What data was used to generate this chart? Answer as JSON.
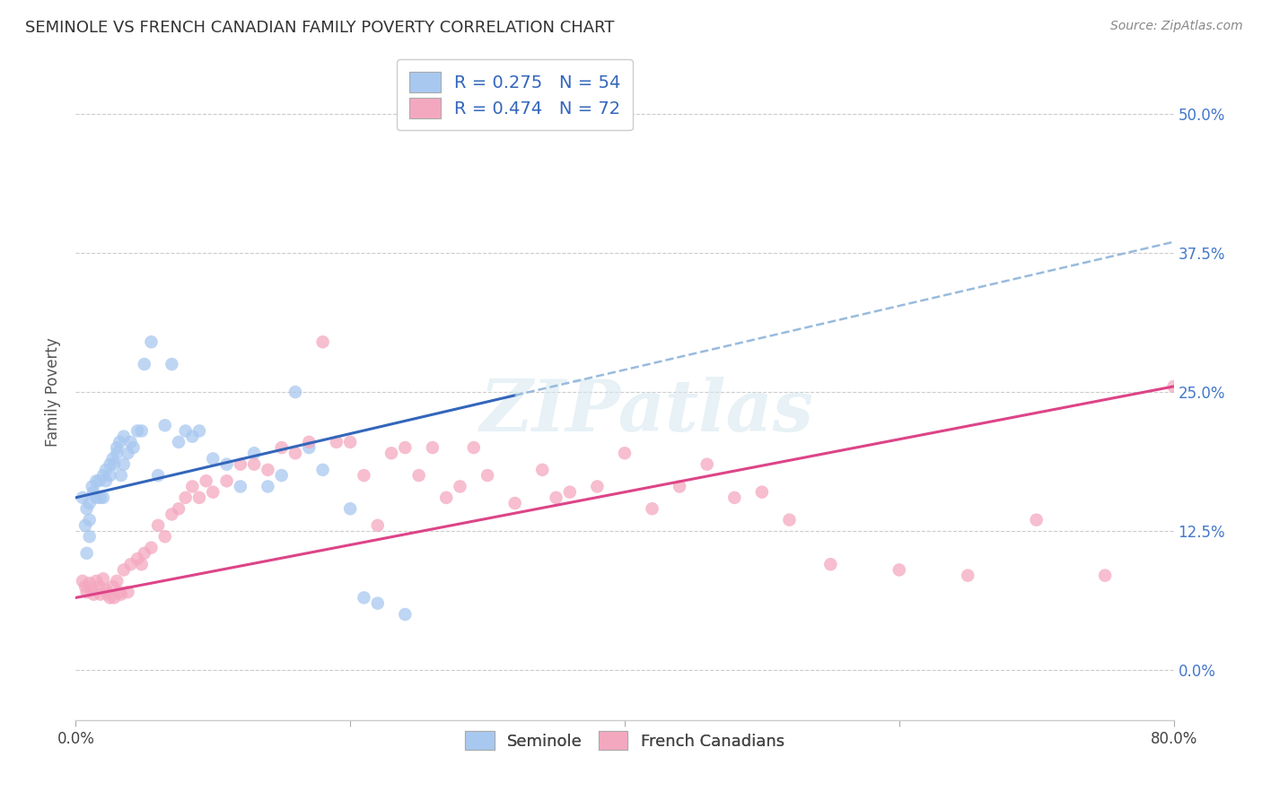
{
  "title": "SEMINOLE VS FRENCH CANADIAN FAMILY POVERTY CORRELATION CHART",
  "source": "Source: ZipAtlas.com",
  "ylabel": "Family Poverty",
  "ytick_values": [
    0.0,
    0.125,
    0.25,
    0.375,
    0.5
  ],
  "ytick_labels": [
    "0.0%",
    "12.5%",
    "25.0%",
    "37.5%",
    "50.0%"
  ],
  "xlim": [
    0.0,
    0.8
  ],
  "ylim": [
    -0.045,
    0.545
  ],
  "legend_label_seminole": "Seminole",
  "legend_label_french": "French Canadians",
  "seminole_color": "#a8c8f0",
  "french_color": "#f4a8c0",
  "blue_line_color": "#3366bb",
  "blue_dash_color": "#99bbdd",
  "pink_line_color": "#dd4488",
  "watermark": "ZIPatlas",
  "seminole_R": 0.275,
  "seminole_N": 54,
  "french_R": 0.474,
  "french_N": 72,
  "sem_line_x0": 0.0,
  "sem_line_y0": 0.155,
  "sem_line_x1": 0.8,
  "sem_line_y1": 0.385,
  "sem_line_solid_end": 0.32,
  "fre_line_x0": 0.0,
  "fre_line_y0": 0.065,
  "fre_line_x1": 0.8,
  "fre_line_y1": 0.255,
  "seminole_x": [
    0.005,
    0.007,
    0.008,
    0.01,
    0.01,
    0.012,
    0.013,
    0.015,
    0.015,
    0.017,
    0.018,
    0.02,
    0.02,
    0.022,
    0.022,
    0.025,
    0.025,
    0.027,
    0.028,
    0.03,
    0.03,
    0.032,
    0.033,
    0.035,
    0.035,
    0.038,
    0.04,
    0.042,
    0.045,
    0.048,
    0.05,
    0.055,
    0.06,
    0.065,
    0.07,
    0.075,
    0.08,
    0.085,
    0.09,
    0.1,
    0.11,
    0.12,
    0.13,
    0.14,
    0.15,
    0.16,
    0.17,
    0.18,
    0.2,
    0.21,
    0.22,
    0.24,
    0.008,
    0.01
  ],
  "seminole_y": [
    0.155,
    0.13,
    0.145,
    0.15,
    0.135,
    0.165,
    0.16,
    0.17,
    0.155,
    0.17,
    0.155,
    0.175,
    0.155,
    0.17,
    0.18,
    0.185,
    0.175,
    0.19,
    0.185,
    0.2,
    0.195,
    0.205,
    0.175,
    0.21,
    0.185,
    0.195,
    0.205,
    0.2,
    0.215,
    0.215,
    0.275,
    0.295,
    0.175,
    0.22,
    0.275,
    0.205,
    0.215,
    0.21,
    0.215,
    0.19,
    0.185,
    0.165,
    0.195,
    0.165,
    0.175,
    0.25,
    0.2,
    0.18,
    0.145,
    0.065,
    0.06,
    0.05,
    0.105,
    0.12
  ],
  "french_x": [
    0.005,
    0.007,
    0.008,
    0.01,
    0.012,
    0.013,
    0.015,
    0.017,
    0.018,
    0.02,
    0.022,
    0.023,
    0.025,
    0.027,
    0.028,
    0.03,
    0.032,
    0.033,
    0.035,
    0.038,
    0.04,
    0.045,
    0.048,
    0.05,
    0.055,
    0.06,
    0.065,
    0.07,
    0.075,
    0.08,
    0.085,
    0.09,
    0.095,
    0.1,
    0.11,
    0.12,
    0.13,
    0.14,
    0.15,
    0.16,
    0.17,
    0.18,
    0.19,
    0.2,
    0.21,
    0.22,
    0.23,
    0.24,
    0.25,
    0.26,
    0.27,
    0.28,
    0.29,
    0.3,
    0.32,
    0.34,
    0.35,
    0.36,
    0.38,
    0.4,
    0.42,
    0.44,
    0.46,
    0.48,
    0.5,
    0.52,
    0.55,
    0.6,
    0.65,
    0.7,
    0.75,
    0.8
  ],
  "french_y": [
    0.08,
    0.075,
    0.07,
    0.078,
    0.072,
    0.068,
    0.08,
    0.075,
    0.068,
    0.082,
    0.072,
    0.068,
    0.065,
    0.075,
    0.065,
    0.08,
    0.07,
    0.068,
    0.09,
    0.07,
    0.095,
    0.1,
    0.095,
    0.105,
    0.11,
    0.13,
    0.12,
    0.14,
    0.145,
    0.155,
    0.165,
    0.155,
    0.17,
    0.16,
    0.17,
    0.185,
    0.185,
    0.18,
    0.2,
    0.195,
    0.205,
    0.295,
    0.205,
    0.205,
    0.175,
    0.13,
    0.195,
    0.2,
    0.175,
    0.2,
    0.155,
    0.165,
    0.2,
    0.175,
    0.15,
    0.18,
    0.155,
    0.16,
    0.165,
    0.195,
    0.145,
    0.165,
    0.185,
    0.155,
    0.16,
    0.135,
    0.095,
    0.09,
    0.085,
    0.135,
    0.085,
    0.255
  ]
}
